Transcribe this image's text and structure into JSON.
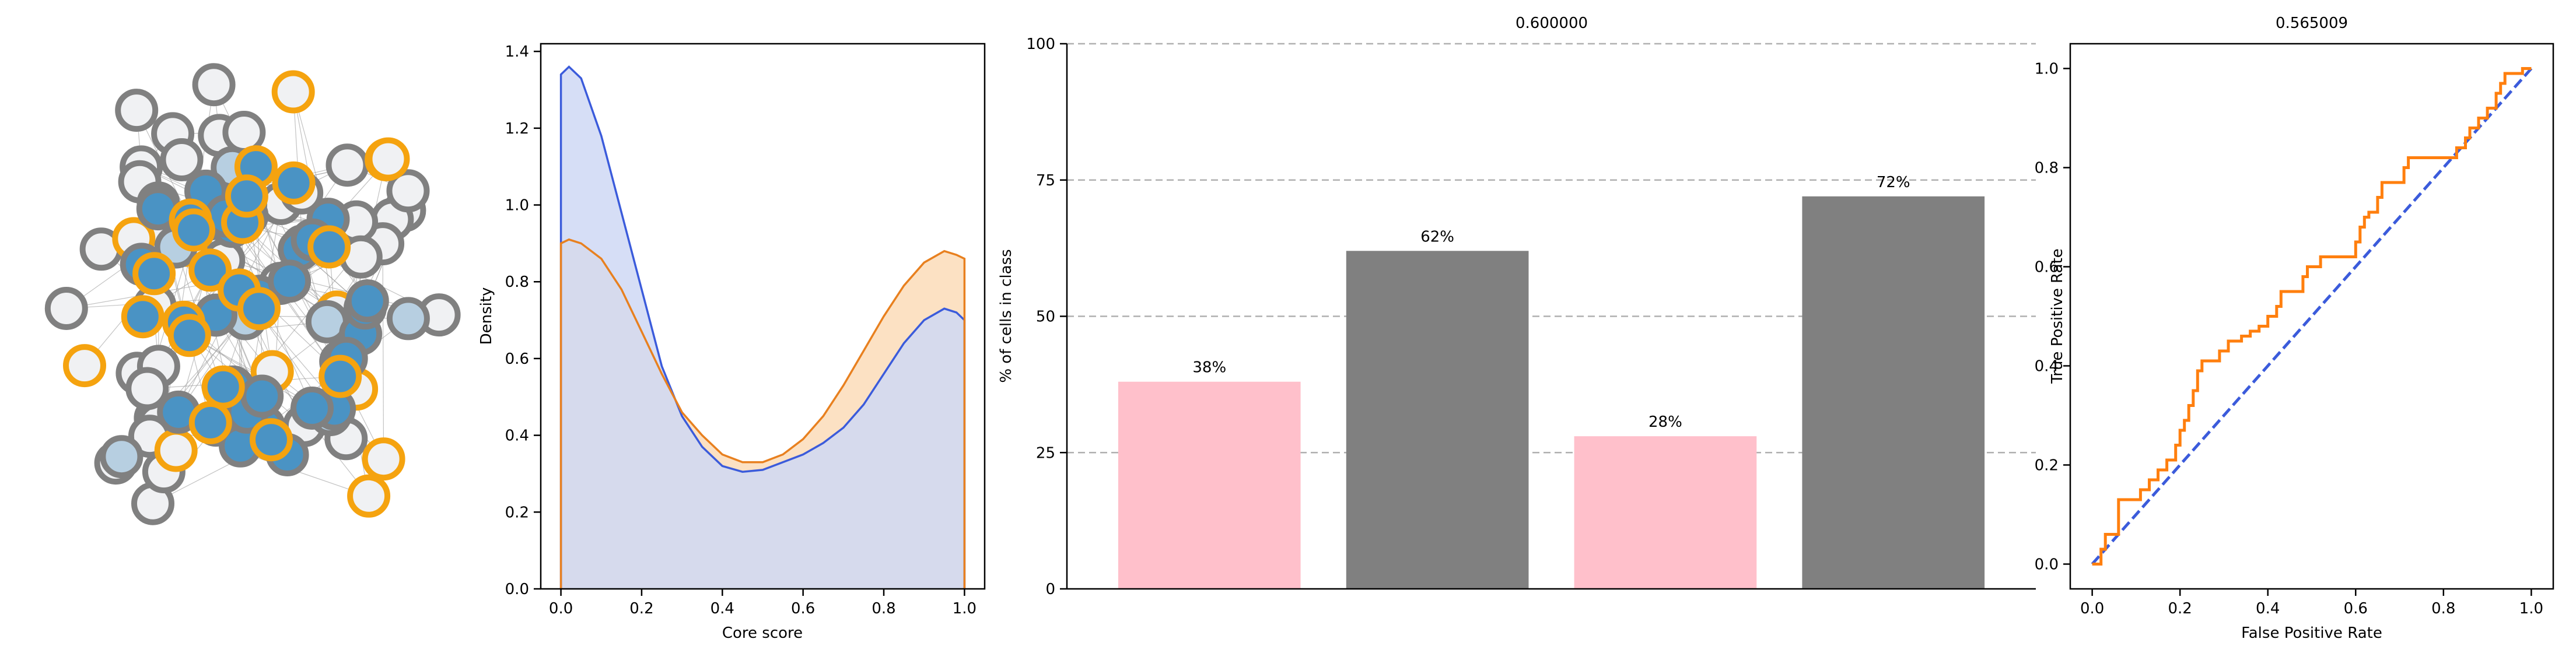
{
  "colors": {
    "core_fill": "#4a93c4",
    "light_fill": "#b7cfe1",
    "white_fill": "#f0f1f3",
    "gray_ring": "#808080",
    "orange_ring": "#f5a30f",
    "kde_blue": "#3b5bdb",
    "kde_blue_fill": "#cfd8f5",
    "kde_orange": "#e8801f",
    "kde_orange_fill": "#fcdcb8",
    "bar_pink": "#ffc0cb",
    "bar_gray": "#808080",
    "roc_orange": "#ff7f0e",
    "roc_blue": "#3b5bdb"
  },
  "chart_data": [
    {
      "type": "network",
      "node_groups": [
        {
          "fill": "white",
          "ring": "gray",
          "count": 38
        },
        {
          "fill": "white",
          "ring": "orange",
          "count": 12
        },
        {
          "fill": "light-blue",
          "ring": "gray",
          "count": 10
        },
        {
          "fill": "blue",
          "ring": "gray",
          "count": 26
        },
        {
          "fill": "blue",
          "ring": "orange",
          "count": 18
        }
      ]
    },
    {
      "type": "area",
      "xlabel": "Core score",
      "ylabel": "Density",
      "xlim": [
        -0.05,
        1.05
      ],
      "ylim": [
        0,
        1.42
      ],
      "xticks": [
        "0.0",
        "0.2",
        "0.4",
        "0.6",
        "0.8",
        "1.0"
      ],
      "yticks": [
        "0.0",
        "0.2",
        "0.4",
        "0.6",
        "0.8",
        "1.0",
        "1.2",
        "1.4"
      ],
      "x": [
        0.0,
        0.02,
        0.05,
        0.1,
        0.15,
        0.2,
        0.25,
        0.3,
        0.35,
        0.4,
        0.45,
        0.5,
        0.55,
        0.6,
        0.65,
        0.7,
        0.75,
        0.8,
        0.85,
        0.9,
        0.95,
        0.98,
        1.0
      ],
      "series": [
        {
          "color": "blue",
          "values": [
            1.34,
            1.36,
            1.33,
            1.18,
            0.98,
            0.78,
            0.58,
            0.45,
            0.37,
            0.32,
            0.305,
            0.31,
            0.33,
            0.35,
            0.38,
            0.42,
            0.48,
            0.56,
            0.64,
            0.7,
            0.73,
            0.72,
            0.7
          ]
        },
        {
          "color": "orange",
          "values": [
            0.9,
            0.91,
            0.9,
            0.86,
            0.78,
            0.67,
            0.56,
            0.46,
            0.4,
            0.35,
            0.33,
            0.33,
            0.35,
            0.39,
            0.45,
            0.53,
            0.62,
            0.71,
            0.79,
            0.85,
            0.88,
            0.87,
            0.86
          ]
        }
      ]
    },
    {
      "type": "bar",
      "title": "0.600000",
      "ylabel": "% of cells in class",
      "ylim": [
        0,
        100
      ],
      "yticks": [
        "0",
        "25",
        "50",
        "75",
        "100"
      ],
      "grid": "horizontal dashed",
      "values": [
        38,
        62,
        28,
        72
      ],
      "bar_colors": [
        "pink",
        "gray",
        "pink",
        "gray"
      ],
      "data_labels": [
        "38%",
        "62%",
        "28%",
        "72%"
      ]
    },
    {
      "type": "line",
      "title": "0.565009",
      "xlabel": "False Positive Rate",
      "ylabel": "True Positive Rate",
      "xlim": [
        -0.05,
        1.05
      ],
      "ylim": [
        -0.05,
        1.05
      ],
      "xticks": [
        "0.0",
        "0.2",
        "0.4",
        "0.6",
        "0.8",
        "1.0"
      ],
      "yticks": [
        "0.0",
        "0.2",
        "0.4",
        "0.6",
        "0.8",
        "1.0"
      ],
      "roc": [
        [
          0,
          0
        ],
        [
          0.02,
          0
        ],
        [
          0.02,
          0.03
        ],
        [
          0.03,
          0.03
        ],
        [
          0.03,
          0.06
        ],
        [
          0.06,
          0.06
        ],
        [
          0.06,
          0.13
        ],
        [
          0.11,
          0.13
        ],
        [
          0.11,
          0.15
        ],
        [
          0.13,
          0.15
        ],
        [
          0.13,
          0.17
        ],
        [
          0.15,
          0.17
        ],
        [
          0.15,
          0.19
        ],
        [
          0.17,
          0.19
        ],
        [
          0.17,
          0.21
        ],
        [
          0.19,
          0.21
        ],
        [
          0.19,
          0.24
        ],
        [
          0.2,
          0.24
        ],
        [
          0.2,
          0.27
        ],
        [
          0.21,
          0.27
        ],
        [
          0.21,
          0.29
        ],
        [
          0.22,
          0.29
        ],
        [
          0.22,
          0.32
        ],
        [
          0.23,
          0.32
        ],
        [
          0.23,
          0.35
        ],
        [
          0.24,
          0.35
        ],
        [
          0.24,
          0.39
        ],
        [
          0.25,
          0.39
        ],
        [
          0.25,
          0.41
        ],
        [
          0.29,
          0.41
        ],
        [
          0.29,
          0.43
        ],
        [
          0.31,
          0.43
        ],
        [
          0.31,
          0.45
        ],
        [
          0.34,
          0.45
        ],
        [
          0.34,
          0.46
        ],
        [
          0.36,
          0.46
        ],
        [
          0.36,
          0.47
        ],
        [
          0.38,
          0.47
        ],
        [
          0.38,
          0.48
        ],
        [
          0.4,
          0.48
        ],
        [
          0.4,
          0.5
        ],
        [
          0.42,
          0.5
        ],
        [
          0.42,
          0.52
        ],
        [
          0.43,
          0.52
        ],
        [
          0.43,
          0.55
        ],
        [
          0.48,
          0.55
        ],
        [
          0.48,
          0.58
        ],
        [
          0.49,
          0.58
        ],
        [
          0.49,
          0.6
        ],
        [
          0.52,
          0.6
        ],
        [
          0.52,
          0.62
        ],
        [
          0.6,
          0.62
        ],
        [
          0.6,
          0.65
        ],
        [
          0.61,
          0.65
        ],
        [
          0.61,
          0.68
        ],
        [
          0.62,
          0.68
        ],
        [
          0.62,
          0.7
        ],
        [
          0.63,
          0.7
        ],
        [
          0.63,
          0.71
        ],
        [
          0.65,
          0.71
        ],
        [
          0.65,
          0.74
        ],
        [
          0.66,
          0.74
        ],
        [
          0.66,
          0.77
        ],
        [
          0.71,
          0.77
        ],
        [
          0.71,
          0.8
        ],
        [
          0.72,
          0.8
        ],
        [
          0.72,
          0.82
        ],
        [
          0.83,
          0.82
        ],
        [
          0.83,
          0.84
        ],
        [
          0.85,
          0.84
        ],
        [
          0.85,
          0.86
        ],
        [
          0.86,
          0.86
        ],
        [
          0.86,
          0.88
        ],
        [
          0.88,
          0.88
        ],
        [
          0.88,
          0.9
        ],
        [
          0.9,
          0.9
        ],
        [
          0.9,
          0.92
        ],
        [
          0.92,
          0.92
        ],
        [
          0.92,
          0.95
        ],
        [
          0.93,
          0.95
        ],
        [
          0.93,
          0.97
        ],
        [
          0.94,
          0.97
        ],
        [
          0.94,
          0.99
        ],
        [
          0.98,
          0.99
        ],
        [
          0.98,
          1.0
        ],
        [
          1.0,
          1.0
        ]
      ],
      "diagonal": [
        [
          0,
          0
        ],
        [
          1,
          1
        ]
      ]
    }
  ]
}
